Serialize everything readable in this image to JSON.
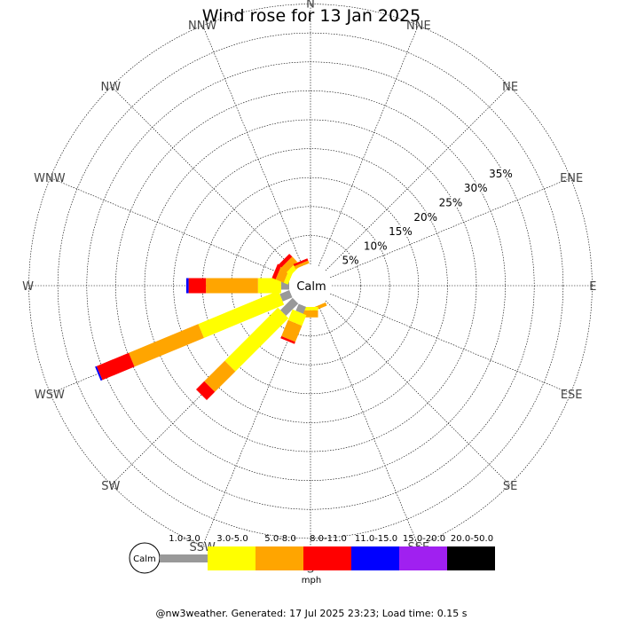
{
  "chart_data": {
    "type": "windrose",
    "title": "Wind rose for 13 Jan 2025",
    "center_label": "Calm",
    "directions": [
      "N",
      "NNE",
      "NE",
      "ENE",
      "E",
      "ESE",
      "SE",
      "SSE",
      "S",
      "SSW",
      "SW",
      "WSW",
      "W",
      "WNW",
      "NW",
      "NNW"
    ],
    "radial_ticks": [
      "5%",
      "10%",
      "15%",
      "20%",
      "25%",
      "30%",
      "35%"
    ],
    "radial_values": [
      5,
      10,
      15,
      20,
      25,
      30,
      35
    ],
    "speed_bins": [
      "1.0-3.0",
      "3.0-5.0",
      "5.0-8.0",
      "8.0-11.0",
      "11.0-15.0",
      "15.0-20.0",
      "20.0-50.0"
    ],
    "speed_colors": [
      "#999999",
      "#ffff00",
      "#ffa500",
      "#ff0000",
      "#0000ff",
      "#a020f0",
      "#000000"
    ],
    "unit": "mph",
    "data": [
      {
        "dir": "N",
        "values": [
          0,
          0,
          0,
          0,
          0,
          0,
          0
        ]
      },
      {
        "dir": "NNE",
        "values": [
          0,
          0,
          0,
          0,
          0,
          0,
          0
        ]
      },
      {
        "dir": "NE",
        "values": [
          0,
          0,
          0,
          0,
          0,
          0,
          0
        ]
      },
      {
        "dir": "ENE",
        "values": [
          0,
          0,
          0,
          0,
          0,
          0,
          0
        ]
      },
      {
        "dir": "E",
        "values": [
          0,
          0,
          0,
          0,
          0,
          0,
          0
        ]
      },
      {
        "dir": "ESE",
        "values": [
          0,
          0,
          0,
          0,
          0,
          0,
          0
        ]
      },
      {
        "dir": "SE",
        "values": [
          0,
          0,
          0,
          0,
          0,
          0,
          0
        ]
      },
      {
        "dir": "SSE",
        "values": [
          0,
          0,
          0.6,
          0,
          0,
          0,
          0
        ]
      },
      {
        "dir": "S",
        "values": [
          0,
          0.6,
          1.2,
          0,
          0,
          0,
          0
        ]
      },
      {
        "dir": "SSW",
        "values": [
          1.3,
          2.0,
          3.0,
          0.4,
          0,
          0,
          0
        ]
      },
      {
        "dir": "SW",
        "values": [
          3.0,
          13.0,
          5.0,
          2.0,
          0,
          0,
          0
        ]
      },
      {
        "dir": "WSW",
        "values": [
          1.8,
          15.0,
          13.0,
          6.0,
          0.3,
          0,
          0
        ]
      },
      {
        "dir": "W",
        "values": [
          1.4,
          4.0,
          9.0,
          3.0,
          0.4,
          0,
          0
        ]
      },
      {
        "dir": "WNW",
        "values": [
          0,
          0.8,
          1.5,
          0.7,
          0,
          0,
          0
        ]
      },
      {
        "dir": "NW",
        "values": [
          0,
          0.9,
          1.2,
          0.7,
          0,
          0,
          0
        ]
      },
      {
        "dir": "NNW",
        "values": [
          0,
          0,
          0.5,
          0.4,
          0,
          0,
          0
        ]
      }
    ]
  },
  "footer": "@nw3weather. Generated: 17 Jul 2025 23:23; Load time: 0.15 s"
}
